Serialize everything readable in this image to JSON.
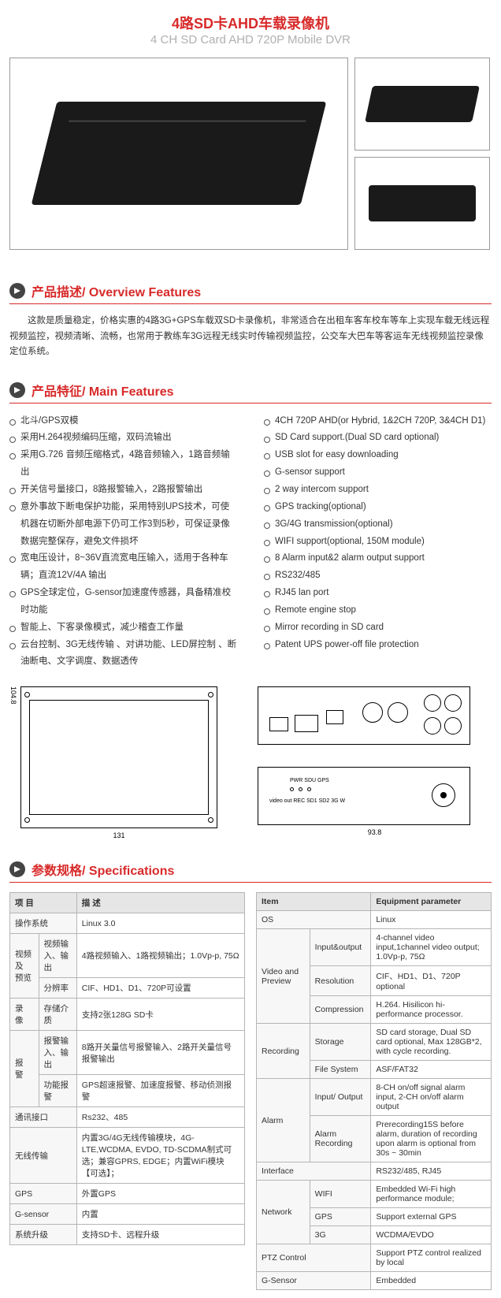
{
  "title": {
    "cn": "4路SD卡AHD车载录像机",
    "en": "4 CH SD Card AHD 720P Mobile DVR"
  },
  "sections": {
    "overview": {
      "cn": "产品描述/",
      "en": " Overview Features",
      "text": "这款是质量稳定，价格实惠的4路3G+GPS车载双SD卡录像机，非常适合在出租车客车校车等车上实现车载无线远程视频监控，视频清晰、流畅，也常用于教练车3G远程无线实时传输视频监控，公交车大巴车等客运车无线视频监控录像定位系统。"
    },
    "features": {
      "cn": "产品特征/",
      "en": " Main Features"
    },
    "specs": {
      "cn": "参数规格/",
      "en": " Specifications"
    }
  },
  "features_cn": [
    "北斗/GPS双模",
    "采用H.264视频编码压缩，双码流输出",
    "采用G.726 音频压缩格式，4路音频输入，1路音频输出",
    "开关信号量接口，8路报警输入，2路报警输出",
    "意外事故下断电保护功能，采用特别UPS技术，可使机器在切断外部电源下仍可工作3到5秒，可保证录像数据完整保存，避免文件损坏",
    "宽电压设计，8~36V直流宽电压输入，适用于各种车辆；直流12V/4A 输出",
    "GPS全球定位，G-sensor加速度传感器，具备精准校时功能",
    "智能上、下客录像模式，减少稽查工作量",
    "云台控制、3G无线传输 、对讲功能、LED屏控制 、断油断电、文字调度、数据透传"
  ],
  "features_en": [
    "4CH 720P AHD(or Hybrid, 1&2CH 720P, 3&4CH D1)",
    "SD Card support.(Dual SD card optional)",
    "USB slot for easy downloading",
    "G-sensor support",
    "2 way intercom support",
    "GPS tracking(optional)",
    "3G/4G transmission(optional)",
    "WIFI support(optional, 150M module)",
    "8 Alarm input&2 alarm output support",
    "RS232/485",
    "RJ45 lan port",
    "Remote engine stop",
    "Mirror recording in SD card",
    "Patent UPS power-off file protection"
  ],
  "diagram": {
    "w_top": "131",
    "h_side": "104.8",
    "w_bottom": "93.8"
  },
  "spec_cn": {
    "head": [
      "项 目",
      "描 述"
    ],
    "rows": [
      {
        "span": 2,
        "k1": "操作系统",
        "v": "Linux 3.0"
      },
      {
        "g": "视频 及 预览",
        "k": "视频输入、输出",
        "v": "4路视频输入、1路视频输出；1.0Vp-p, 75Ω"
      },
      {
        "k": "分辨率",
        "v": "CIF、HD1、D1、720P可设置"
      },
      {
        "g": "录 像",
        "k": "存储介质",
        "v": "支持2张128G SD卡"
      },
      {
        "g": "报 警",
        "k": "报警输入、输出",
        "v": "8路开关量信号报警输入、2路开关量信号报警输出"
      },
      {
        "k": "功能报警",
        "v": "GPS超速报警、加速度报警、移动侦测报警"
      },
      {
        "span": 2,
        "k1": "通讯接口",
        "v": "Rs232、485"
      },
      {
        "span": 2,
        "k1": "无线传输",
        "v": "内置3G/4G无线传输模块，4G-LTE,WCDMA, EVDO, TD-SCDMA制式可选；兼容GPRS, EDGE；内置WiFi模块【可选】；"
      },
      {
        "span": 2,
        "k1": "GPS",
        "v": "外置GPS"
      },
      {
        "span": 2,
        "k1": "G-sensor",
        "v": "内置"
      },
      {
        "span": 2,
        "k1": "系统升级",
        "v": "支持SD卡、远程升级"
      }
    ]
  },
  "spec_en": {
    "head": [
      "Item",
      "Equipment parameter"
    ],
    "rows": [
      {
        "span": 2,
        "k1": "OS",
        "v": "Linux"
      },
      {
        "g": "Video and Preview",
        "k": "Input&output",
        "v": "4-channel video input,1channel video output; 1.0Vp-p, 75Ω"
      },
      {
        "k": "Resolution",
        "v": "CIF、HD1、D1、720P optional"
      },
      {
        "k": "Compression",
        "v": "H.264. Hisilicon hi-performance processor."
      },
      {
        "g": "Recording",
        "k": "Storage",
        "v": "SD card storage, Dual SD card optional, Max 128GB*2, with cycle recording."
      },
      {
        "k": "File System",
        "v": "ASF/FAT32"
      },
      {
        "g": "Alarm",
        "k": "Input/ Output",
        "v": "8-CH on/off signal alarm input, 2-CH on/off alarm output"
      },
      {
        "k": "Alarm Recording",
        "v": "Prerecording15S before alarm, duration of recording upon alarm is optional from 30s ~ 30min"
      },
      {
        "span": 2,
        "k1": "Interface",
        "v": "RS232/485, RJ45"
      },
      {
        "g": "Network",
        "k": "WIFI",
        "v": "Embedded Wi-Fi  high performance module;"
      },
      {
        "k": "GPS",
        "v": "Support external GPS"
      },
      {
        "k": "3G",
        "v": "WCDMA/EVDO"
      },
      {
        "span": 2,
        "k1": "PTZ Control",
        "v": "Support PTZ control realized by local"
      },
      {
        "span": 2,
        "k1": "G-Sensor",
        "v": "Embedded"
      }
    ]
  },
  "colors": {
    "red": "#d82a2a",
    "grey": "#b0b0b0",
    "border": "#b5b5b5"
  }
}
